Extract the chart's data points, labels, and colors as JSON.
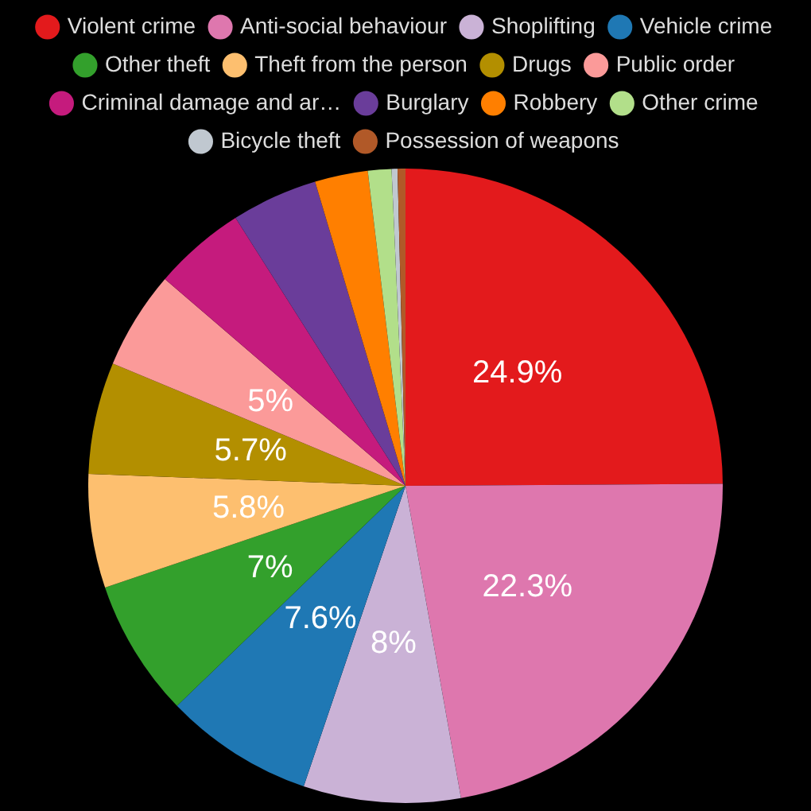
{
  "chart_data": {
    "type": "pie",
    "categories": [
      "Violent crime",
      "Anti-social behaviour",
      "Shoplifting",
      "Vehicle crime",
      "Other theft",
      "Theft from the person",
      "Drugs",
      "Public order",
      "Criminal damage and ar…",
      "Burglary",
      "Robbery",
      "Other crime",
      "Bicycle theft",
      "Possession of weapons"
    ],
    "values": [
      24.9,
      22.3,
      8,
      7.6,
      7,
      5.8,
      5.7,
      5,
      4.7,
      4.4,
      2.7,
      1.2,
      0.3,
      0.4
    ],
    "value_labels": [
      "24.9%",
      "22.3%",
      "8%",
      "7.6%",
      "7%",
      "5.8%",
      "5.7%",
      "5%",
      null,
      null,
      null,
      null,
      null,
      null
    ],
    "colors": [
      "#e31a1c",
      "#de77ae",
      "#cab2d6",
      "#1f78b4",
      "#33a02c",
      "#fdbf6f",
      "#b38f00",
      "#fb9a99",
      "#c51b7d",
      "#6a3d9a",
      "#ff7f00",
      "#b2df8a",
      "#c0c8d0",
      "#b15928"
    ],
    "legend": "top"
  }
}
